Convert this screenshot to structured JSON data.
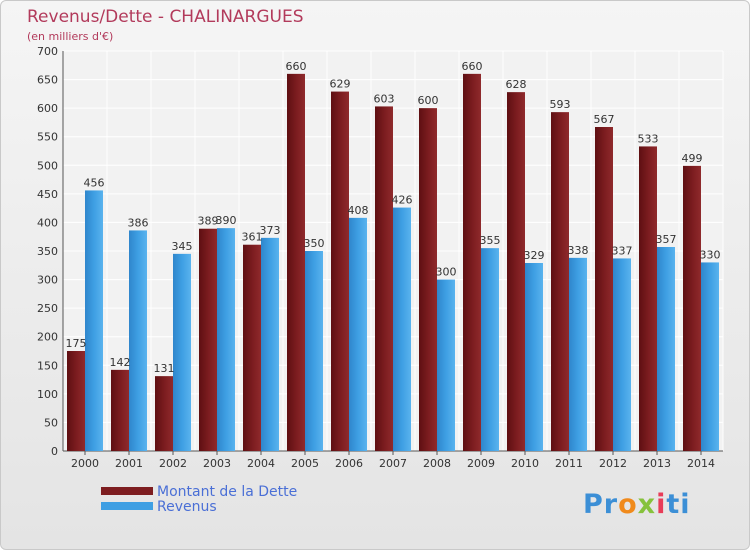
{
  "title": "Revenus/Dette - CHALINARGUES",
  "subtitle": "(en milliers d'€)",
  "logo": "Proxiti",
  "colors": {
    "dette": "#7d1d20",
    "revenus": "#3e9fe3",
    "title": "#b23a5b",
    "legend_text": "#4a6fd6"
  },
  "chart_data": {
    "type": "bar",
    "title": "Revenus/Dette - CHALINARGUES",
    "ylabel": "(en milliers d'€)",
    "categories": [
      "2000",
      "2001",
      "2002",
      "2003",
      "2004",
      "2005",
      "2006",
      "2007",
      "2008",
      "2009",
      "2010",
      "2011",
      "2012",
      "2013",
      "2014"
    ],
    "series": [
      {
        "name": "Montant de la Dette",
        "values": [
          175,
          142,
          131,
          389,
          361,
          660,
          629,
          603,
          600,
          660,
          628,
          593,
          567,
          533,
          499
        ]
      },
      {
        "name": "Revenus",
        "values": [
          456,
          386,
          345,
          390,
          373,
          350,
          408,
          426,
          300,
          355,
          329,
          338,
          337,
          357,
          330
        ]
      }
    ],
    "ylim": [
      0,
      700
    ],
    "yticks": [
      0,
      50,
      100,
      150,
      200,
      250,
      300,
      350,
      400,
      450,
      500,
      550,
      600,
      650,
      700
    ],
    "grid": true,
    "legend_position": "bottom-left"
  }
}
